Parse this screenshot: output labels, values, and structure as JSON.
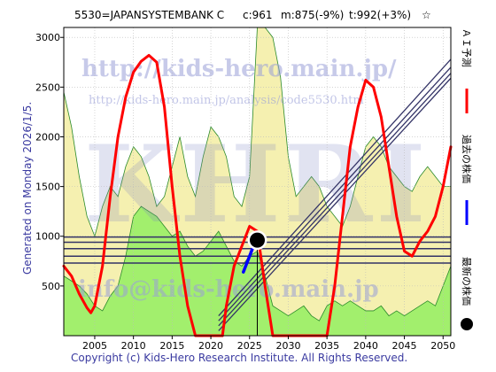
{
  "header": {
    "title": "5530=JAPANSYSTEMBANK C",
    "c_label": "c:961",
    "m_label": "m:875(-9%)",
    "t_label": "t:992(+3%)",
    "star": "☆"
  },
  "footer": {
    "copyright": "Copyright (c) Kids-Hero Research Institute. All Rights Reserved."
  },
  "side_label": "Generated on Monday 2026/1/5.",
  "watermark": {
    "url_big": "http://kids-hero.main.jp/",
    "url_small": "http://kids-hero.main.jp/analysis/code5530.htm",
    "logo": "KHRI",
    "email": "info@kids-hero.main.jp"
  },
  "legend": [
    {
      "label": "ＡＩ予測",
      "color": "#ff0000",
      "marker": "line"
    },
    {
      "label": "過去の株価",
      "color": "#0000ff",
      "marker": "line"
    },
    {
      "label": "最新の株価",
      "color": "#000000",
      "marker": "dot"
    }
  ],
  "colors": {
    "ai_prediction": "#ff0000",
    "past_price": "#0000ff",
    "green_fill": "#99ee66",
    "yellow_fill": "#f5f0b0",
    "band_lines": "#333366"
  },
  "chart_data": {
    "type": "line",
    "xlim": [
      2001,
      2051
    ],
    "ylim": [
      0,
      3100
    ],
    "xticks": [
      2005,
      2010,
      2015,
      2020,
      2025,
      2030,
      2035,
      2040,
      2045,
      2050
    ],
    "yticks": [
      500,
      1000,
      1500,
      2000,
      2500,
      3000
    ],
    "grid": true,
    "latest_point": {
      "x": 2026.0,
      "y": 961
    },
    "horizontal_levels": [
      730,
      800,
      875,
      940,
      992
    ],
    "diagonal_trend_lines": [
      {
        "x0": 2021.0,
        "y0": 200,
        "x1": 2051,
        "y1": 2780
      },
      {
        "x0": 2021.0,
        "y0": 150,
        "x1": 2051,
        "y1": 2700
      },
      {
        "x0": 2021.0,
        "y0": 100,
        "x1": 2051,
        "y1": 2640
      },
      {
        "x0": 2021.0,
        "y0": 50,
        "x1": 2051,
        "y1": 2590
      }
    ],
    "series": [
      {
        "name": "ＡＩ予測",
        "x": [
          2001,
          2002,
          2003,
          2004,
          2004.5,
          2005,
          2006,
          2007,
          2008,
          2009,
          2010,
          2011,
          2012,
          2013,
          2014,
          2015,
          2016,
          2017,
          2018,
          2019,
          2020,
          2021,
          2021.5,
          2022,
          2023,
          2024,
          2025,
          2026,
          2027,
          2028,
          2029,
          2035,
          2036,
          2037,
          2038,
          2039,
          2040,
          2041,
          2042,
          2043,
          2044,
          2045,
          2046,
          2047,
          2048,
          2049,
          2050,
          2051
        ],
        "y": [
          700,
          600,
          420,
          280,
          230,
          300,
          700,
          1400,
          2000,
          2400,
          2650,
          2760,
          2820,
          2750,
          2300,
          1500,
          800,
          300,
          0,
          0,
          0,
          0,
          0,
          300,
          700,
          900,
          1100,
          1050,
          500,
          0,
          0,
          0,
          500,
          1200,
          1900,
          2300,
          2570,
          2500,
          2200,
          1700,
          1200,
          850,
          800,
          950,
          1050,
          1200,
          1500,
          1900
        ]
      },
      {
        "name": "過去の株価",
        "x": [
          2024.2,
          2024.5,
          2024.8,
          2025.1,
          2025.4,
          2025.7,
          2026.0
        ],
        "y": [
          640,
          700,
          760,
          820,
          880,
          920,
          961
        ]
      }
    ],
    "green_area": {
      "x": [
        2001,
        2002,
        2003,
        2004,
        2005,
        2006,
        2007,
        2008,
        2009,
        2010,
        2011,
        2012,
        2013,
        2014,
        2015,
        2016,
        2017,
        2018,
        2019,
        2020,
        2021,
        2022,
        2023,
        2024,
        2025,
        2026,
        2027,
        2028,
        2029,
        2030,
        2031,
        2032,
        2033,
        2034,
        2035,
        2036,
        2037,
        2038,
        2039,
        2040,
        2041,
        2042,
        2043,
        2044,
        2045,
        2046,
        2047,
        2048,
        2049,
        2050,
        2051
      ],
      "y": [
        600,
        550,
        500,
        420,
        300,
        250,
        400,
        500,
        800,
        1200,
        1300,
        1250,
        1200,
        1100,
        1000,
        1050,
        900,
        800,
        850,
        950,
        1050,
        900,
        750,
        700,
        800,
        850,
        600,
        300,
        250,
        200,
        250,
        300,
        200,
        150,
        300,
        350,
        300,
        350,
        300,
        250,
        250,
        300,
        200,
        250,
        200,
        250,
        300,
        350,
        300,
        500,
        700
      ]
    },
    "yellow_area": {
      "x": [
        2001,
        2002,
        2003,
        2004,
        2005,
        2006,
        2007,
        2008,
        2009,
        2010,
        2011,
        2012,
        2013,
        2014,
        2015,
        2016,
        2017,
        2018,
        2019,
        2020,
        2021,
        2022,
        2023,
        2024,
        2025,
        2026,
        2027,
        2028,
        2029,
        2030,
        2031,
        2032,
        2033,
        2034,
        2035,
        2036,
        2037,
        2038,
        2039,
        2040,
        2041,
        2042,
        2043,
        2044,
        2045,
        2046,
        2047,
        2048,
        2049,
        2050,
        2051
      ],
      "y": [
        2450,
        2100,
        1600,
        1200,
        1000,
        1300,
        1500,
        1400,
        1700,
        1900,
        1800,
        1600,
        1300,
        1400,
        1700,
        2000,
        1600,
        1400,
        1800,
        2100,
        2000,
        1800,
        1400,
        1300,
        1600,
        3100,
        3100,
        3000,
        2600,
        1800,
        1400,
        1500,
        1600,
        1500,
        1300,
        1200,
        1100,
        1300,
        1600,
        1900,
        2000,
        1900,
        1700,
        1600,
        1500,
        1450,
        1600,
        1700,
        1600,
        1500,
        1500
      ]
    }
  }
}
